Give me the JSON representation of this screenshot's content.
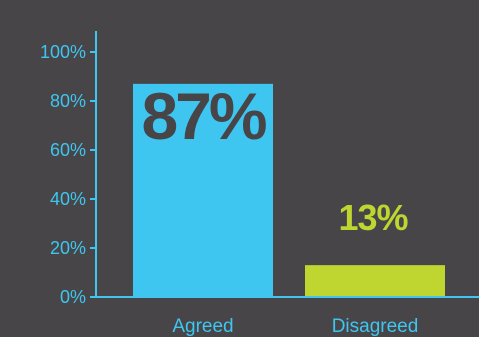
{
  "chart_data": {
    "type": "bar",
    "categories": [
      "Agreed",
      "Disagreed"
    ],
    "values": [
      87,
      13
    ],
    "data_labels": [
      "87%",
      "13%"
    ],
    "y_ticks": [
      "0%",
      "20%",
      "40%",
      "60%",
      "80%",
      "100%"
    ],
    "ylim": [
      0,
      100
    ],
    "title": "",
    "xlabel": "",
    "ylabel": "",
    "grid": false
  },
  "colors": {
    "background": "#474548",
    "axis": "#3ec6f0",
    "bar_agreed": "#3ec6f0",
    "bar_disagreed": "#bed62f",
    "label_on_bar": "#474548",
    "label_above_bar": "#bed62f"
  }
}
